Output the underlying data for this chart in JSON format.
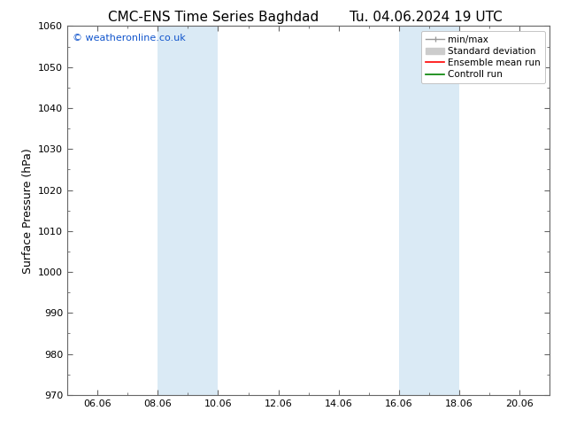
{
  "title_left": "CMC-ENS Time Series Baghdad",
  "title_right": "Tu. 04.06.2024 19 UTC",
  "ylabel": "Surface Pressure (hPa)",
  "ylim": [
    970,
    1060
  ],
  "yticks": [
    970,
    980,
    990,
    1000,
    1010,
    1020,
    1030,
    1040,
    1050,
    1060
  ],
  "xlim": [
    0,
    16
  ],
  "xtick_labels": [
    "06.06",
    "08.06",
    "10.06",
    "12.06",
    "14.06",
    "16.06",
    "18.06",
    "20.06"
  ],
  "xtick_positions": [
    1,
    3,
    5,
    7,
    9,
    11,
    13,
    15
  ],
  "minor_xtick_positions": [
    0,
    1,
    2,
    3,
    4,
    5,
    6,
    7,
    8,
    9,
    10,
    11,
    12,
    13,
    14,
    15,
    16
  ],
  "shaded_regions": [
    {
      "xmin": 3,
      "xmax": 5,
      "color": "#daeaf5"
    },
    {
      "xmin": 11,
      "xmax": 13,
      "color": "#daeaf5"
    }
  ],
  "watermark_text": "© weatheronline.co.uk",
  "watermark_color": "#1155cc",
  "legend_items": [
    {
      "label": "min/max",
      "color": "#aaaaaa",
      "lw": 1.2
    },
    {
      "label": "Standard deviation",
      "color": "#bbbbbb",
      "lw": 7
    },
    {
      "label": "Ensemble mean run",
      "color": "red",
      "lw": 1.2
    },
    {
      "label": "Controll run",
      "color": "green",
      "lw": 1.2
    }
  ],
  "bg_color": "#ffffff",
  "spine_color": "#666666",
  "title_fontsize": 11,
  "axis_label_fontsize": 9,
  "tick_fontsize": 8,
  "legend_fontsize": 7.5,
  "watermark_fontsize": 8
}
